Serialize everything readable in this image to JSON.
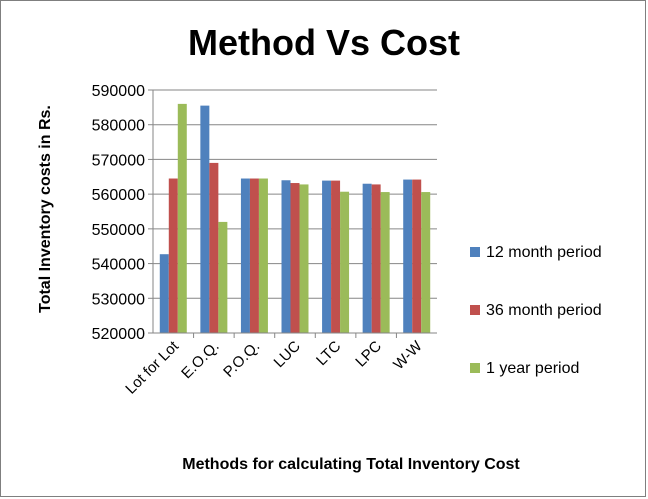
{
  "chart_data": {
    "type": "bar",
    "title": "Method Vs Cost",
    "xlabel": "Methods for calculating  Total  Inventory Cost",
    "ylabel": "Total Inventory costs in Rs.",
    "ylim": [
      520000,
      590000
    ],
    "yticks": [
      520000,
      530000,
      540000,
      550000,
      560000,
      570000,
      580000,
      590000
    ],
    "grid": true,
    "legend_position": "right",
    "categories": [
      "Lot for Lot",
      "E.O.Q.",
      "P.O.Q.",
      "LUC",
      "LTC",
      "LPC",
      "W-W"
    ],
    "series": [
      {
        "name": "12 month period",
        "color": "#4f81bd",
        "values": [
          542700,
          585500,
          564500,
          564000,
          563900,
          563000,
          564200
        ]
      },
      {
        "name": "36 month period",
        "color": "#c0504d",
        "values": [
          564500,
          569000,
          564500,
          563200,
          563900,
          562800,
          564200
        ]
      },
      {
        "name": "1 year period",
        "color": "#9bbb59",
        "values": [
          586000,
          552000,
          564500,
          562800,
          560700,
          560600,
          560600
        ]
      }
    ]
  }
}
